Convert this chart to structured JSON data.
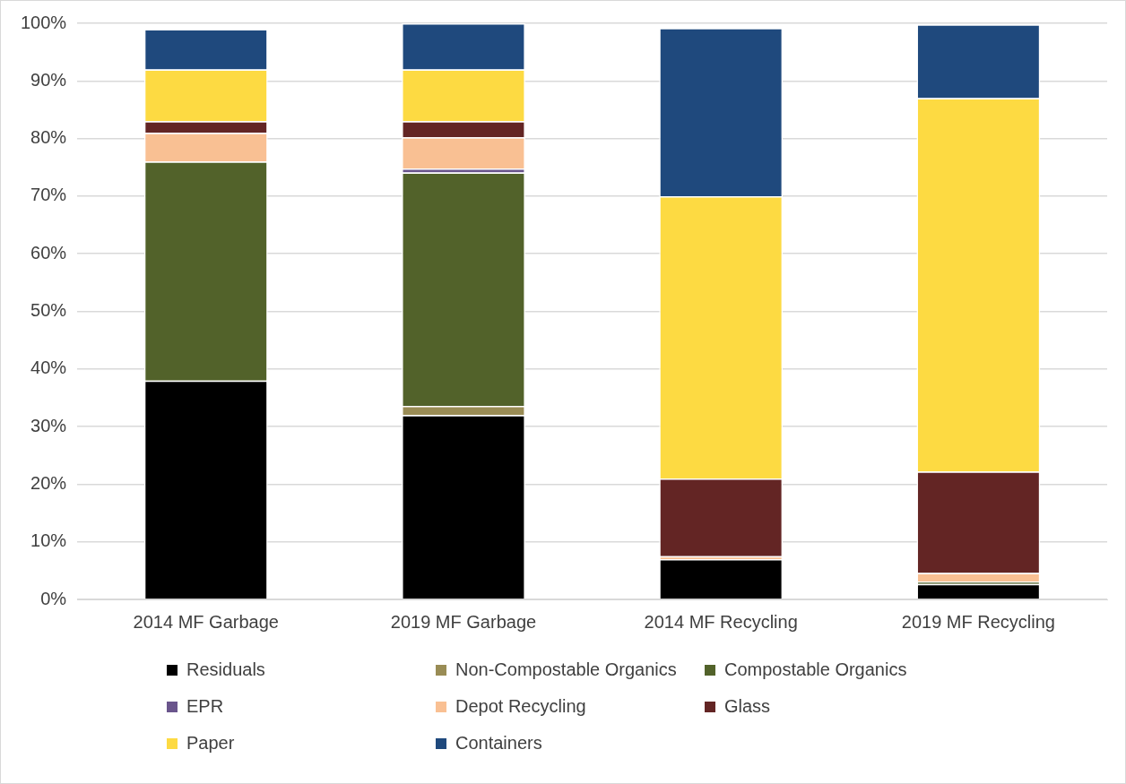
{
  "chart_data": {
    "type": "bar",
    "stacked": true,
    "categories": [
      "2014 MF Garbage",
      "2019 MF Garbage",
      "2014 MF Recycling",
      "2019 MF Recycling"
    ],
    "series": [
      {
        "name": "Residuals",
        "color": "#000000",
        "values": [
          38,
          32,
          7,
          2.7
        ]
      },
      {
        "name": "Non-Compostable Organics",
        "color": "#998c55",
        "values": [
          0,
          1.6,
          0,
          0
        ]
      },
      {
        "name": "Compostable Organics",
        "color": "#52622a",
        "values": [
          38,
          40.5,
          0,
          0.4
        ]
      },
      {
        "name": "EPR",
        "color": "#6a558c",
        "values": [
          0,
          0.7,
          0,
          0
        ]
      },
      {
        "name": "Depot Recycling",
        "color": "#f9c093",
        "values": [
          5,
          5.4,
          0.5,
          1.5
        ]
      },
      {
        "name": "Glass",
        "color": "#632524",
        "values": [
          2,
          2.8,
          13.5,
          17.6
        ]
      },
      {
        "name": "Paper",
        "color": "#fdda42",
        "values": [
          9,
          9,
          49,
          64.8
        ]
      },
      {
        "name": "Containers",
        "color": "#1f497d",
        "values": [
          7,
          8,
          29.2,
          12.8
        ]
      }
    ],
    "ylim": [
      0,
      100
    ],
    "yticks": [
      {
        "value": 0,
        "label": "0%"
      },
      {
        "value": 10,
        "label": "10%"
      },
      {
        "value": 20,
        "label": "20%"
      },
      {
        "value": 30,
        "label": "30%"
      },
      {
        "value": 40,
        "label": "40%"
      },
      {
        "value": 50,
        "label": "50%"
      },
      {
        "value": 60,
        "label": "60%"
      },
      {
        "value": 70,
        "label": "70%"
      },
      {
        "value": 80,
        "label": "80%"
      },
      {
        "value": 90,
        "label": "90%"
      },
      {
        "value": 100,
        "label": "100%"
      }
    ],
    "grid": "y",
    "legend": "bottom"
  }
}
